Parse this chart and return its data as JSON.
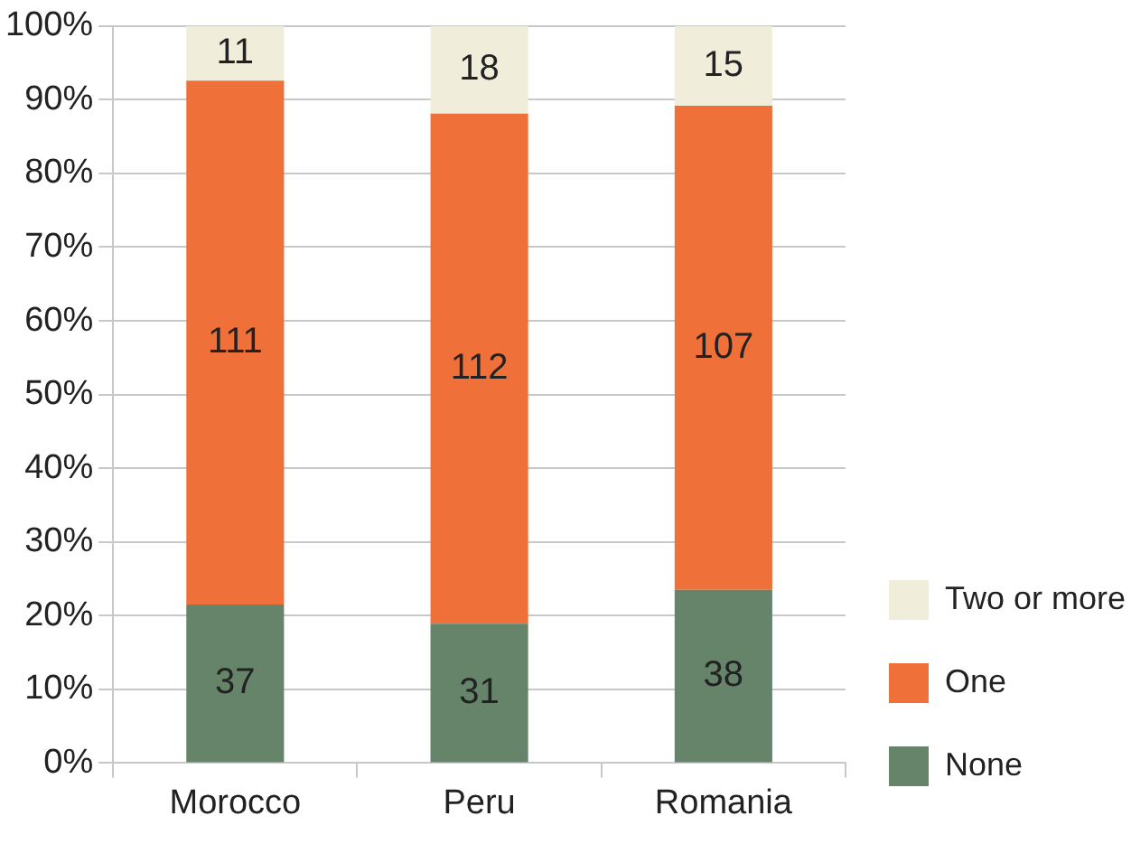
{
  "chart_data": {
    "type": "bar",
    "stacked": true,
    "categories": [
      "Morocco",
      "Peru",
      "Romania"
    ],
    "series": [
      {
        "name": "None",
        "color": "#66846a",
        "values": [
          21.5,
          18.9,
          23.5
        ]
      },
      {
        "name": "One",
        "color": "#f07039",
        "values": [
          71.1,
          69.2,
          65.7
        ]
      },
      {
        "name": "Two or more",
        "color": "#f0eddb",
        "values": [
          7.4,
          11.9,
          10.8
        ]
      }
    ],
    "annotations": [
      "37",
      "31",
      "38",
      "111",
      "112",
      "107",
      "11",
      "18",
      "15"
    ],
    "ylim": [
      0,
      100
    ],
    "yticks": [
      {
        "value": 0,
        "label": "0%"
      },
      {
        "value": 10,
        "label": "10%"
      },
      {
        "value": 20,
        "label": "20%"
      },
      {
        "value": 30,
        "label": "30%"
      },
      {
        "value": 40,
        "label": "40%"
      },
      {
        "value": 50,
        "label": "50%"
      },
      {
        "value": 60,
        "label": "60%"
      },
      {
        "value": 70,
        "label": "70%"
      },
      {
        "value": 80,
        "label": "80%"
      },
      {
        "value": 90,
        "label": "90%"
      },
      {
        "value": 100,
        "label": "100%"
      }
    ],
    "grid": "y",
    "legend": "right"
  }
}
